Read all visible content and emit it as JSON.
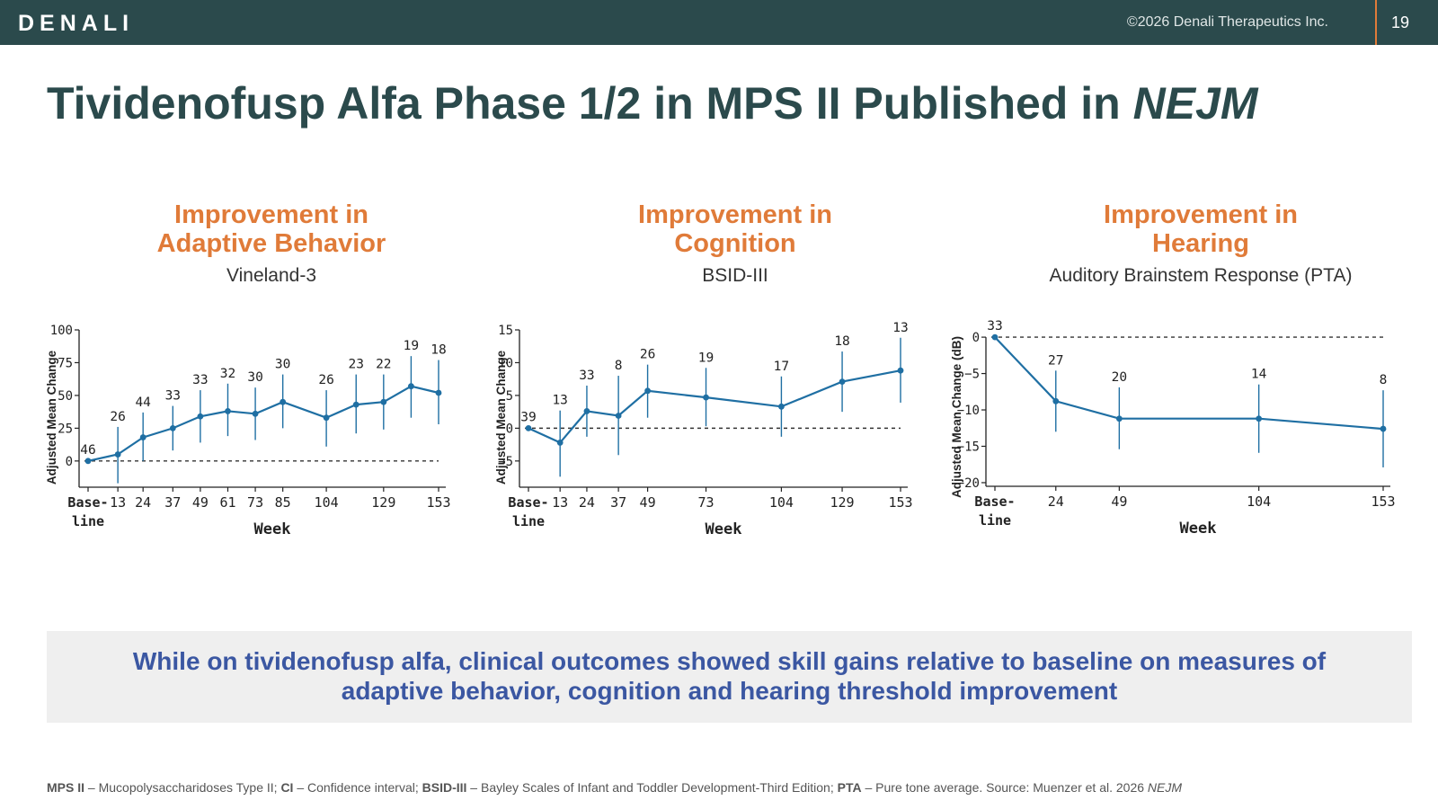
{
  "header": {
    "logo_text": "DENALI",
    "copyright": "©2026 Denali Therapeutics Inc.",
    "page_number": "19"
  },
  "title": {
    "main": "Tividenofusp Alfa Phase 1/2 in MPS II Published in ",
    "italic": "NEJM"
  },
  "panels": [
    {
      "title_line1": "Improvement in",
      "title_line2": "Adaptive Behavior",
      "subtitle": "Vineland-3"
    },
    {
      "title_line1": "Improvement in",
      "title_line2": "Cognition",
      "subtitle": "BSID-III"
    },
    {
      "title_line1": "Improvement in",
      "title_line2": "Hearing",
      "subtitle": "Auditory Brainstem Response (PTA)"
    }
  ],
  "colors": {
    "header_bg": "#2b4a4c",
    "accent_orange": "#e07b39",
    "series_blue": "#1f6fa3",
    "banner_text": "#3b57a2"
  },
  "chart_data": [
    {
      "type": "line",
      "ylabel": "Adjusted Mean Change",
      "xlabel": "Week",
      "ylim": [
        -20,
        100
      ],
      "yticks": [
        0,
        25,
        50,
        75,
        100
      ],
      "xlim": [
        0,
        153
      ],
      "xticks": [
        {
          "v": 0,
          "l1": "Base-",
          "l2": "line"
        },
        {
          "v": 13,
          "l1": "13"
        },
        {
          "v": 24,
          "l1": "24"
        },
        {
          "v": 37,
          "l1": "37"
        },
        {
          "v": 49,
          "l1": "49"
        },
        {
          "v": 61,
          "l1": "61"
        },
        {
          "v": 73,
          "l1": "73"
        },
        {
          "v": 85,
          "l1": "85"
        },
        {
          "v": 104,
          "l1": "104"
        },
        {
          "v": 129,
          "l1": "129"
        },
        {
          "v": 153,
          "l1": "153"
        }
      ],
      "reference_line": 0,
      "x": [
        0,
        13,
        24,
        37,
        49,
        61,
        73,
        85,
        104,
        117,
        129,
        141,
        153
      ],
      "y": [
        0,
        5,
        18,
        25,
        34,
        38,
        36,
        45,
        33,
        43,
        45,
        57,
        52
      ],
      "ci_low": [
        -1,
        -17,
        0,
        8,
        14,
        19,
        16,
        25,
        11,
        21,
        24,
        33,
        28
      ],
      "ci_high": [
        1,
        26,
        37,
        42,
        54,
        59,
        56,
        66,
        54,
        66,
        66,
        80,
        77
      ],
      "n": [
        46,
        26,
        44,
        33,
        33,
        32,
        30,
        30,
        26,
        23,
        22,
        19,
        18
      ]
    },
    {
      "type": "line",
      "ylabel": "Adjusted Mean Change",
      "xlabel": "Week",
      "ylim": [
        -9,
        15
      ],
      "yticks": [
        -5,
        0,
        5,
        10,
        15
      ],
      "xlim": [
        0,
        153
      ],
      "xticks": [
        {
          "v": 0,
          "l1": "Base-",
          "l2": "line"
        },
        {
          "v": 13,
          "l1": "13"
        },
        {
          "v": 24,
          "l1": "24"
        },
        {
          "v": 37,
          "l1": "37"
        },
        {
          "v": 49,
          "l1": "49"
        },
        {
          "v": 73,
          "l1": "73"
        },
        {
          "v": 104,
          "l1": "104"
        },
        {
          "v": 129,
          "l1": "129"
        },
        {
          "v": 153,
          "l1": "153"
        }
      ],
      "reference_line": 0,
      "x": [
        0,
        13,
        24,
        37,
        49,
        73,
        104,
        129,
        153
      ],
      "y": [
        0,
        -2.2,
        2.6,
        1.9,
        5.7,
        4.7,
        3.3,
        7.1,
        8.8
      ],
      "ci_low": [
        -0.2,
        -7.4,
        -1.3,
        -4.1,
        1.6,
        0.3,
        -1.3,
        2.5,
        3.9
      ],
      "ci_high": [
        0.2,
        2.7,
        6.5,
        8.0,
        9.7,
        9.2,
        7.9,
        11.7,
        13.8
      ],
      "n": [
        39,
        13,
        33,
        8,
        26,
        19,
        17,
        18,
        13
      ]
    },
    {
      "type": "line",
      "ylabel": "Adjusted Mean Change (dB)",
      "xlabel": "Week",
      "ylim": [
        -20.5,
        1
      ],
      "yticks": [
        -20,
        -15,
        -10,
        -5,
        0
      ],
      "xlim": [
        0,
        153
      ],
      "xticks": [
        {
          "v": 0,
          "l1": "Base-",
          "l2": "line"
        },
        {
          "v": 24,
          "l1": "24"
        },
        {
          "v": 49,
          "l1": "49"
        },
        {
          "v": 104,
          "l1": "104"
        },
        {
          "v": 153,
          "l1": "153"
        }
      ],
      "reference_line": 0,
      "x": [
        0,
        24,
        49,
        104,
        153
      ],
      "y": [
        0,
        -8.8,
        -11.2,
        -11.2,
        -12.6
      ],
      "ci_low": [
        -0.3,
        -13,
        -15.4,
        -15.9,
        -17.9
      ],
      "ci_high": [
        0.3,
        -4.6,
        -6.9,
        -6.5,
        -7.3
      ],
      "n": [
        33,
        27,
        20,
        14,
        8
      ]
    }
  ],
  "banner": {
    "line1": "While on tividenofusp alfa, clinical outcomes showed skill gains relative to baseline on measures of",
    "line2": "adaptive behavior, cognition and hearing threshold improvement"
  },
  "footer": [
    {
      "abbr": "MPS II",
      "text": " – Mucopolysaccharidoses Type II;  "
    },
    {
      "abbr": "CI",
      "text": " – Confidence interval;  "
    },
    {
      "abbr": "BSID-III",
      "text": " – Bayley Scales of Infant and Toddler Development-Third Edition;  "
    },
    {
      "abbr": "PTA",
      "text": " – Pure tone average.  Source: Muenzer et al. 2026 "
    }
  ],
  "footer_italic": "NEJM"
}
